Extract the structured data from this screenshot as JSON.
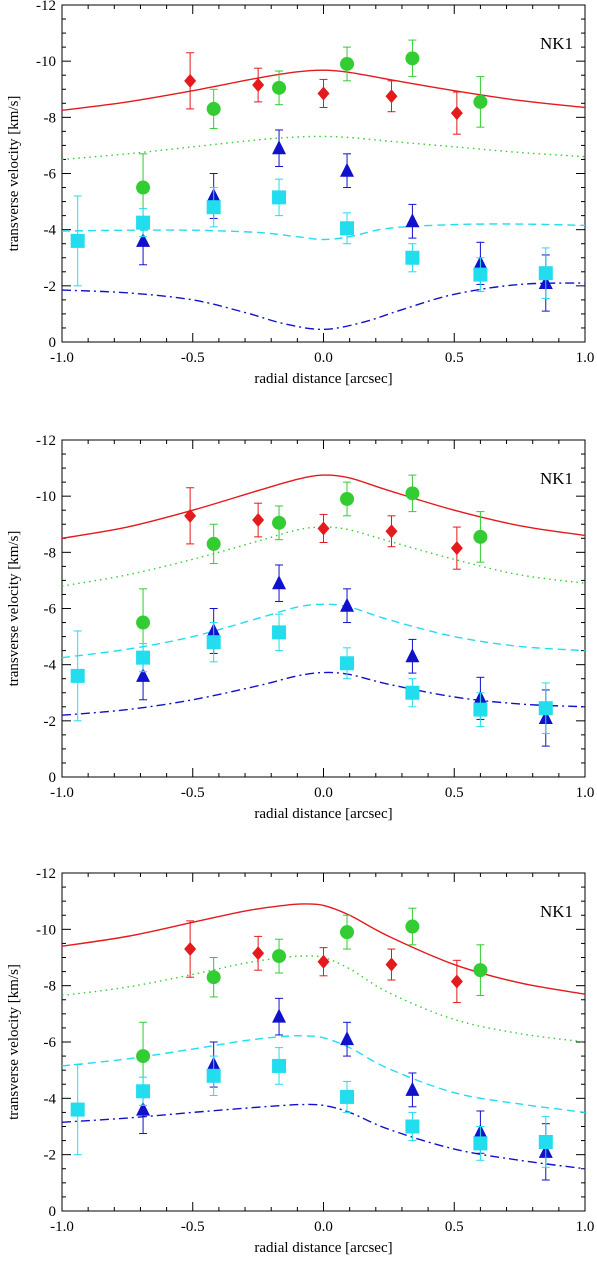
{
  "chart_data": [
    {
      "type": "scatter",
      "title": "",
      "panel_label": "NK1",
      "xlabel": "radial distance [arcsec]",
      "ylabel": "transverse velocity [km/s]",
      "xlim": [
        -1.0,
        1.0
      ],
      "ylim": [
        -12,
        0
      ],
      "ylim_note": "inverted",
      "xticks": [
        "-1.0",
        "-0.5",
        "0.0",
        "0.5",
        "1.0"
      ],
      "yticks": [
        "-12",
        "-10",
        "-8",
        "-6",
        "-4",
        "-2",
        "0"
      ],
      "grid": false,
      "points": {
        "red_diamond": {
          "color": "#e41a1c",
          "x": [
            -0.51,
            -0.25,
            0.0,
            0.26,
            0.51
          ],
          "y": [
            -9.3,
            -9.15,
            -8.85,
            -8.75,
            -8.15
          ],
          "err": [
            1.0,
            0.6,
            0.5,
            0.55,
            0.75
          ]
        },
        "green_circle": {
          "color": "#33cc33",
          "x": [
            -0.69,
            -0.42,
            -0.17,
            0.09,
            0.34,
            0.6
          ],
          "y": [
            -5.5,
            -8.3,
            -9.05,
            -9.9,
            -10.1,
            -8.55
          ],
          "err": [
            1.2,
            0.7,
            0.6,
            0.6,
            0.65,
            0.9
          ]
        },
        "blue_triangle": {
          "color": "#1111cc",
          "x": [
            -0.69,
            -0.42,
            -0.17,
            0.09,
            0.34,
            0.6,
            0.85
          ],
          "y": [
            -3.6,
            -5.2,
            -6.9,
            -6.1,
            -4.3,
            -2.8,
            -2.1
          ],
          "err": [
            0.85,
            0.8,
            0.65,
            0.6,
            0.6,
            0.75,
            1.0
          ]
        },
        "cyan_square": {
          "color": "#22ddee",
          "x": [
            -0.94,
            -0.69,
            -0.42,
            -0.17,
            0.09,
            0.34,
            0.6,
            0.85
          ],
          "y": [
            -3.6,
            -4.25,
            -4.8,
            -5.15,
            -4.05,
            -3.0,
            -2.4,
            -2.45
          ],
          "err": [
            1.6,
            0.5,
            0.7,
            0.65,
            0.55,
            0.5,
            0.6,
            0.9
          ]
        }
      },
      "curves": {
        "solid_red": {
          "color": "#e41a1c",
          "x": [
            -1.0,
            -0.75,
            -0.5,
            -0.25,
            -0.1,
            0.0,
            0.1,
            0.25,
            0.5,
            0.75,
            1.0
          ],
          "y": [
            -8.25,
            -8.55,
            -8.95,
            -9.4,
            -9.62,
            -9.68,
            -9.6,
            -9.35,
            -8.95,
            -8.6,
            -8.35
          ]
        },
        "dotted_green": {
          "color": "#33cc33",
          "x": [
            -1.0,
            -0.75,
            -0.5,
            -0.25,
            -0.1,
            0.0,
            0.1,
            0.25,
            0.5,
            0.75,
            1.0
          ],
          "y": [
            -6.5,
            -6.7,
            -6.95,
            -7.2,
            -7.3,
            -7.32,
            -7.28,
            -7.15,
            -6.95,
            -6.75,
            -6.6
          ]
        },
        "dashed_cyan": {
          "color": "#22ddee",
          "x": [
            -1.0,
            -0.75,
            -0.5,
            -0.25,
            -0.1,
            0.0,
            0.1,
            0.25,
            0.5,
            0.75,
            1.0
          ],
          "y": [
            -3.95,
            -3.98,
            -3.98,
            -3.9,
            -3.75,
            -3.65,
            -3.75,
            -4.05,
            -4.18,
            -4.2,
            -4.15
          ]
        },
        "dashdot_blue": {
          "color": "#1111cc",
          "x": [
            -1.0,
            -0.75,
            -0.5,
            -0.3,
            -0.15,
            0.0,
            0.15,
            0.3,
            0.5,
            0.75,
            1.0
          ],
          "y": [
            -1.85,
            -1.75,
            -1.5,
            -1.05,
            -0.65,
            -0.45,
            -0.7,
            -1.15,
            -1.7,
            -2.05,
            -2.1
          ]
        }
      }
    },
    {
      "type": "scatter",
      "title": "",
      "panel_label": "NK1",
      "xlabel": "radial distance [arcsec]",
      "ylabel": "transverse velocity [km/s]",
      "xlim": [
        -1.0,
        1.0
      ],
      "ylim": [
        -12,
        0
      ],
      "ylim_note": "inverted",
      "xticks": [
        "-1.0",
        "-0.5",
        "0.0",
        "0.5",
        "1.0"
      ],
      "yticks": [
        "-12",
        "-10",
        "-8",
        "-6",
        "-4",
        "-2",
        "0"
      ],
      "grid": false,
      "points": {
        "red_diamond": {
          "color": "#e41a1c",
          "x": [
            -0.51,
            -0.25,
            0.0,
            0.26,
            0.51
          ],
          "y": [
            -9.3,
            -9.15,
            -8.85,
            -8.75,
            -8.15
          ],
          "err": [
            1.0,
            0.6,
            0.5,
            0.55,
            0.75
          ]
        },
        "green_circle": {
          "color": "#33cc33",
          "x": [
            -0.69,
            -0.42,
            -0.17,
            0.09,
            0.34,
            0.6
          ],
          "y": [
            -5.5,
            -8.3,
            -9.05,
            -9.9,
            -10.1,
            -8.55
          ],
          "err": [
            1.2,
            0.7,
            0.6,
            0.6,
            0.65,
            0.9
          ]
        },
        "blue_triangle": {
          "color": "#1111cc",
          "x": [
            -0.69,
            -0.42,
            -0.17,
            0.09,
            0.34,
            0.6,
            0.85
          ],
          "y": [
            -3.6,
            -5.2,
            -6.9,
            -6.1,
            -4.3,
            -2.8,
            -2.1
          ],
          "err": [
            0.85,
            0.8,
            0.65,
            0.6,
            0.6,
            0.75,
            1.0
          ]
        },
        "cyan_square": {
          "color": "#22ddee",
          "x": [
            -0.94,
            -0.69,
            -0.42,
            -0.17,
            0.09,
            0.34,
            0.6,
            0.85
          ],
          "y": [
            -3.6,
            -4.25,
            -4.8,
            -5.15,
            -4.05,
            -3.0,
            -2.4,
            -2.45
          ],
          "err": [
            1.6,
            0.5,
            0.7,
            0.65,
            0.55,
            0.5,
            0.6,
            0.9
          ]
        }
      },
      "curves": {
        "solid_red": {
          "color": "#e41a1c",
          "x": [
            -1.0,
            -0.75,
            -0.5,
            -0.25,
            -0.1,
            0.0,
            0.1,
            0.25,
            0.5,
            0.75,
            1.0
          ],
          "y": [
            -8.5,
            -8.9,
            -9.5,
            -10.2,
            -10.6,
            -10.75,
            -10.65,
            -10.2,
            -9.5,
            -8.95,
            -8.6
          ]
        },
        "dotted_green": {
          "color": "#33cc33",
          "x": [
            -1.0,
            -0.75,
            -0.5,
            -0.25,
            -0.1,
            0.0,
            0.1,
            0.25,
            0.5,
            0.75,
            1.0
          ],
          "y": [
            -6.8,
            -7.2,
            -7.75,
            -8.4,
            -8.8,
            -8.9,
            -8.8,
            -8.4,
            -7.75,
            -7.2,
            -6.9
          ]
        },
        "dashed_cyan": {
          "color": "#22ddee",
          "x": [
            -1.0,
            -0.75,
            -0.5,
            -0.25,
            -0.1,
            0.0,
            0.1,
            0.25,
            0.5,
            0.75,
            1.0
          ],
          "y": [
            -4.25,
            -4.55,
            -5.0,
            -5.65,
            -6.05,
            -6.15,
            -6.05,
            -5.6,
            -5.0,
            -4.65,
            -4.5
          ]
        },
        "dashdot_blue": {
          "color": "#1111cc",
          "x": [
            -1.0,
            -0.75,
            -0.5,
            -0.25,
            -0.1,
            0.0,
            0.1,
            0.25,
            0.5,
            0.75,
            1.0
          ],
          "y": [
            -2.2,
            -2.4,
            -2.75,
            -3.25,
            -3.6,
            -3.72,
            -3.65,
            -3.3,
            -2.85,
            -2.6,
            -2.5
          ]
        }
      }
    },
    {
      "type": "scatter",
      "title": "",
      "panel_label": "NK1",
      "xlabel": "radial distance [arcsec]",
      "ylabel": "transverse velocity [km/s]",
      "xlim": [
        -1.0,
        1.0
      ],
      "ylim": [
        -12,
        0
      ],
      "ylim_note": "inverted",
      "xticks": [
        "-1.0",
        "-0.5",
        "0.0",
        "0.5",
        "1.0"
      ],
      "yticks": [
        "-12",
        "-10",
        "-8",
        "-6",
        "-4",
        "-2",
        "0"
      ],
      "grid": false,
      "points": {
        "red_diamond": {
          "color": "#e41a1c",
          "x": [
            -0.51,
            -0.25,
            0.0,
            0.26,
            0.51
          ],
          "y": [
            -9.3,
            -9.15,
            -8.85,
            -8.75,
            -8.15
          ],
          "err": [
            1.0,
            0.6,
            0.5,
            0.55,
            0.75
          ]
        },
        "green_circle": {
          "color": "#33cc33",
          "x": [
            -0.69,
            -0.42,
            -0.17,
            0.09,
            0.34,
            0.6
          ],
          "y": [
            -5.5,
            -8.3,
            -9.05,
            -9.9,
            -10.1,
            -8.55
          ],
          "err": [
            1.2,
            0.7,
            0.6,
            0.6,
            0.65,
            0.9
          ]
        },
        "blue_triangle": {
          "color": "#1111cc",
          "x": [
            -0.69,
            -0.42,
            -0.17,
            0.09,
            0.34,
            0.6,
            0.85
          ],
          "y": [
            -3.6,
            -5.2,
            -6.9,
            -6.1,
            -4.3,
            -2.8,
            -2.1
          ],
          "err": [
            0.85,
            0.8,
            0.65,
            0.6,
            0.6,
            0.75,
            1.0
          ]
        },
        "cyan_square": {
          "color": "#22ddee",
          "x": [
            -0.94,
            -0.69,
            -0.42,
            -0.17,
            0.09,
            0.34,
            0.6,
            0.85
          ],
          "y": [
            -3.6,
            -4.25,
            -4.8,
            -5.15,
            -4.05,
            -3.0,
            -2.4,
            -2.45
          ],
          "err": [
            1.6,
            0.5,
            0.7,
            0.65,
            0.55,
            0.5,
            0.6,
            0.9
          ]
        }
      },
      "curves": {
        "solid_red": {
          "color": "#e41a1c",
          "x": [
            -1.0,
            -0.75,
            -0.5,
            -0.3,
            -0.15,
            -0.08,
            0.0,
            0.1,
            0.25,
            0.5,
            0.75,
            1.0
          ],
          "y": [
            -9.4,
            -9.75,
            -10.25,
            -10.65,
            -10.85,
            -10.9,
            -10.85,
            -10.5,
            -9.75,
            -8.75,
            -8.1,
            -7.7
          ]
        },
        "dotted_green": {
          "color": "#33cc33",
          "x": [
            -1.0,
            -0.75,
            -0.5,
            -0.3,
            -0.15,
            -0.08,
            0.0,
            0.1,
            0.25,
            0.5,
            0.75,
            1.0
          ],
          "y": [
            -7.65,
            -7.95,
            -8.4,
            -8.8,
            -9.0,
            -9.05,
            -9.0,
            -8.6,
            -7.75,
            -6.8,
            -6.3,
            -6.0
          ]
        },
        "dashed_cyan": {
          "color": "#22ddee",
          "x": [
            -1.0,
            -0.75,
            -0.5,
            -0.3,
            -0.15,
            -0.08,
            0.0,
            0.1,
            0.25,
            0.5,
            0.75,
            1.0
          ],
          "y": [
            -5.15,
            -5.4,
            -5.75,
            -6.05,
            -6.2,
            -6.22,
            -6.15,
            -5.8,
            -5.05,
            -4.2,
            -3.8,
            -3.5
          ]
        },
        "dashdot_blue": {
          "color": "#1111cc",
          "x": [
            -1.0,
            -0.75,
            -0.5,
            -0.3,
            -0.15,
            -0.08,
            0.0,
            0.1,
            0.25,
            0.5,
            0.75,
            1.0
          ],
          "y": [
            -3.15,
            -3.3,
            -3.5,
            -3.65,
            -3.75,
            -3.78,
            -3.75,
            -3.5,
            -2.9,
            -2.2,
            -1.8,
            -1.5
          ]
        }
      }
    }
  ]
}
